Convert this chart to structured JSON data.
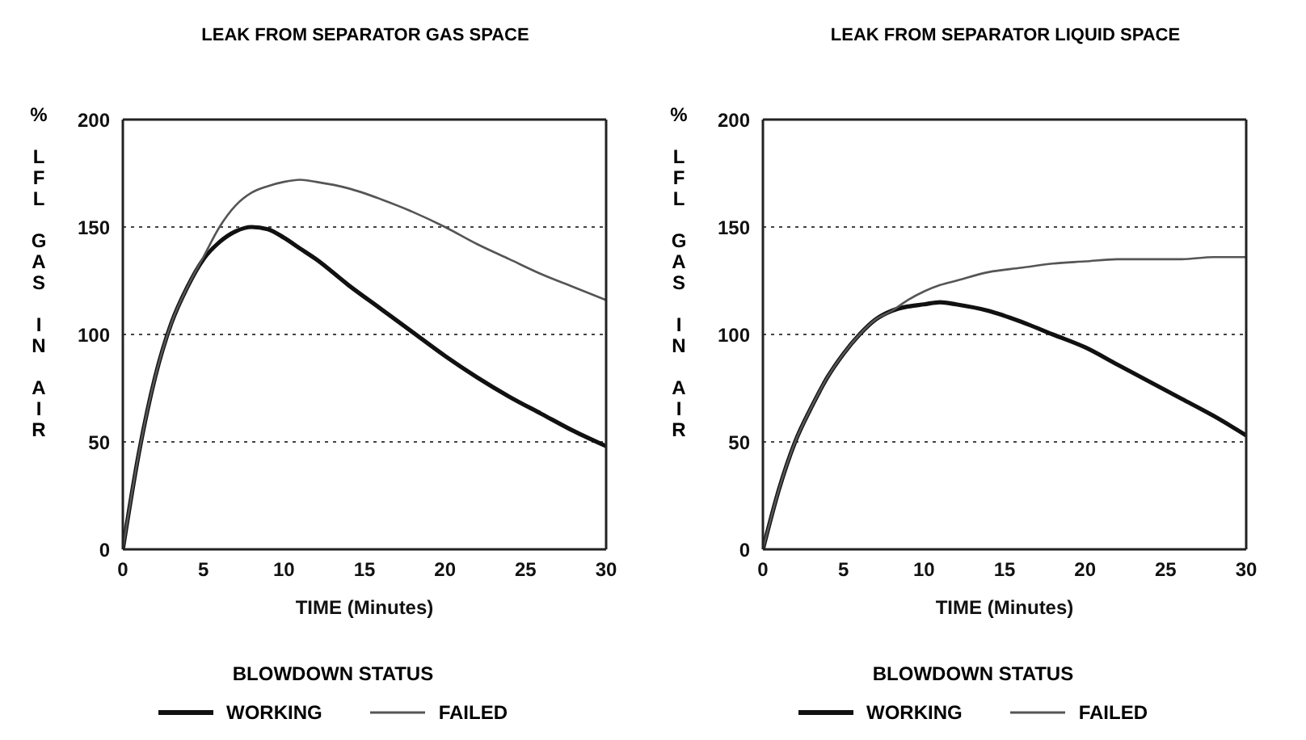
{
  "chart_data": [
    {
      "type": "line",
      "title": "LEAK FROM SEPARATOR GAS SPACE",
      "xlabel": "TIME (Minutes)",
      "ylabel": "% LFL GAS IN AIR",
      "legend_title": "BLOWDOWN STATUS",
      "xlim": [
        0,
        30
      ],
      "xticks": [
        0,
        5,
        10,
        15,
        20,
        25,
        30
      ],
      "ylim": [
        0,
        200
      ],
      "yticks": [
        0,
        50,
        100,
        150,
        200
      ],
      "grid": "y",
      "legend": "bottom",
      "x": [
        0,
        1,
        2,
        3,
        4,
        5,
        6,
        7,
        8,
        9,
        10,
        11,
        12,
        14,
        16,
        18,
        20,
        22,
        24,
        26,
        28,
        30
      ],
      "series": [
        {
          "name": "WORKING",
          "color": "#111111",
          "values": [
            0,
            45,
            80,
            105,
            122,
            135,
            143,
            148,
            150,
            149,
            145,
            140,
            135,
            123,
            112,
            101,
            90,
            80,
            71,
            63,
            55,
            48
          ]
        },
        {
          "name": "FAILED",
          "color": "#555555",
          "values": [
            0,
            45,
            80,
            105,
            122,
            136,
            150,
            160,
            166,
            169,
            171,
            172,
            171,
            168,
            163,
            157,
            150,
            142,
            135,
            128,
            122,
            116
          ]
        }
      ]
    },
    {
      "type": "line",
      "title": "LEAK FROM SEPARATOR LIQUID SPACE",
      "xlabel": "TIME (Minutes)",
      "ylabel": "% LFL GAS IN AIR",
      "legend_title": "BLOWDOWN STATUS",
      "xlim": [
        0,
        30
      ],
      "xticks": [
        0,
        5,
        10,
        15,
        20,
        25,
        30
      ],
      "ylim": [
        0,
        200
      ],
      "yticks": [
        0,
        50,
        100,
        150,
        200
      ],
      "grid": "y",
      "legend": "bottom",
      "x": [
        0,
        1,
        2,
        3,
        4,
        5,
        6,
        7,
        8,
        9,
        10,
        11,
        12,
        14,
        16,
        18,
        20,
        22,
        24,
        26,
        28,
        30
      ],
      "series": [
        {
          "name": "WORKING",
          "color": "#111111",
          "values": [
            0,
            28,
            50,
            66,
            80,
            91,
            100,
            107,
            111,
            113,
            114,
            115,
            114,
            111,
            106,
            100,
            94,
            86,
            78,
            70,
            62,
            53
          ]
        },
        {
          "name": "FAILED",
          "color": "#555555",
          "values": [
            0,
            28,
            50,
            66,
            80,
            91,
            100,
            107,
            111,
            116,
            120,
            123,
            125,
            129,
            131,
            133,
            134,
            135,
            135,
            135,
            136,
            136
          ]
        }
      ]
    }
  ]
}
